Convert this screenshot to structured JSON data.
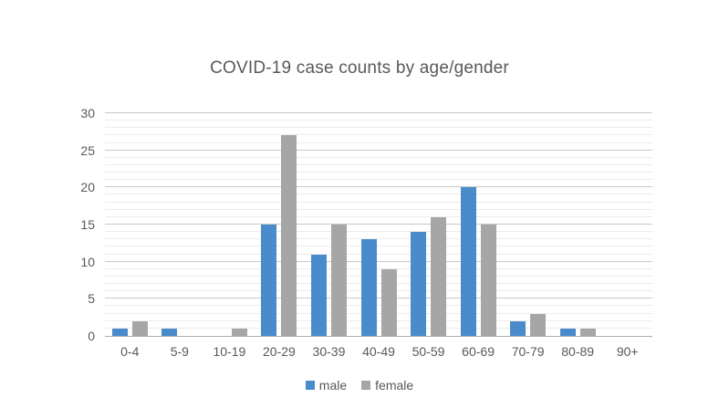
{
  "chart_data": {
    "type": "bar",
    "title": "COVID-19 case counts by age/gender",
    "categories": [
      "0-4",
      "5-9",
      "10-19",
      "20-29",
      "30-39",
      "40-49",
      "50-59",
      "60-69",
      "70-79",
      "80-89",
      "90+"
    ],
    "series": [
      {
        "name": "male",
        "color": "#4a8ccb",
        "values": [
          1,
          1,
          0,
          15,
          11,
          13,
          14,
          20,
          2,
          1,
          0
        ]
      },
      {
        "name": "female",
        "color": "#a6a6a6",
        "values": [
          2,
          0,
          1,
          27,
          15,
          9,
          16,
          15,
          3,
          1,
          0
        ]
      }
    ],
    "xlabel": "",
    "ylabel": "",
    "ylim": [
      0,
      30
    ],
    "yticks": [
      0,
      5,
      10,
      15,
      20,
      25,
      30
    ],
    "minor_unit": 1,
    "major_unit": 5,
    "grid": "horizontal major and minor gridlines",
    "legend_position": "bottom"
  },
  "colors": {
    "background": "#ffffff",
    "text": "#595959",
    "major_gridline": "#c9c9c9",
    "minor_gridline": "#ececec",
    "axis_line": "#adadad"
  }
}
